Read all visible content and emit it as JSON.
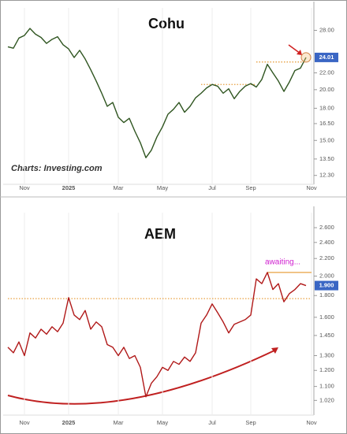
{
  "chart_data": [
    {
      "type": "line",
      "title": "Cohu",
      "source": "Charts: Investing.com",
      "log_scale": true,
      "color": "#2f5520",
      "categories": [
        null,
        null,
        null,
        "Nov",
        null,
        null,
        null,
        null,
        null,
        null,
        null,
        "2025",
        null,
        null,
        null,
        null,
        null,
        null,
        null,
        null,
        "Mar",
        null,
        null,
        null,
        null,
        null,
        null,
        null,
        "May",
        null,
        null,
        null,
        null,
        null,
        null,
        null,
        null,
        "Jul",
        null,
        null,
        null,
        null,
        null,
        null,
        "Sep",
        null,
        null,
        null,
        null,
        null,
        null,
        null,
        null,
        null,
        null,
        "Nov"
      ],
      "values": [
        25.5,
        25.3,
        26.8,
        27.2,
        28.3,
        27.4,
        26.9,
        26.0,
        26.6,
        27.0,
        25.8,
        25.2,
        24.0,
        25.0,
        23.8,
        22.4,
        21.0,
        19.6,
        18.2,
        18.6,
        17.1,
        16.6,
        17.0,
        15.8,
        14.8,
        13.6,
        14.2,
        15.3,
        16.2,
        17.4,
        17.9,
        18.6,
        17.6,
        18.2,
        19.1,
        19.6,
        20.2,
        20.6,
        20.4,
        19.6,
        20.1,
        19.0,
        19.8,
        20.4,
        20.7,
        20.3,
        21.2,
        23.1,
        22.0,
        21.0,
        19.8,
        20.9,
        22.3,
        22.6,
        24.01,
        null
      ],
      "value_labels": [
        null,
        null,
        null,
        null,
        null,
        null,
        null,
        null,
        null,
        null,
        null,
        null,
        null,
        null,
        null,
        null,
        null,
        null,
        null,
        null,
        null,
        null,
        null,
        null,
        null,
        null,
        null,
        null,
        null,
        null,
        null,
        null,
        null,
        null,
        null,
        null,
        null,
        null,
        null,
        null,
        null,
        null,
        null,
        null,
        null,
        null,
        null,
        null,
        null,
        null,
        null,
        null,
        null,
        null,
        "24.01",
        null
      ],
      "ylim": [
        11.8,
        31.8
      ],
      "yticks": [
        {
          "value": 12.3,
          "label": "12.30"
        },
        {
          "value": 13.5,
          "label": "13.50"
        },
        {
          "value": 15,
          "label": "15.00"
        },
        {
          "value": 16.5,
          "label": "16.50"
        },
        {
          "value": 18,
          "label": "18.00"
        },
        {
          "value": 20,
          "label": "20.00"
        },
        {
          "value": 22,
          "label": "22.00"
        },
        {
          "value": 28,
          "label": "28.00"
        }
      ],
      "hlines": [
        {
          "value": 20.6,
          "start": 35,
          "end": 45,
          "style": "dotted",
          "color": "#e8a040"
        },
        {
          "value": 23.4,
          "start": 45,
          "end": 54,
          "style": "dotted",
          "color": "#e8a040"
        }
      ]
    },
    {
      "type": "line",
      "title": "AEM",
      "annotation": "awaiting...",
      "log_scale": true,
      "color": "#b01818",
      "categories": [
        null,
        null,
        null,
        "Nov",
        null,
        null,
        null,
        null,
        null,
        null,
        null,
        "2025",
        null,
        null,
        null,
        null,
        null,
        null,
        null,
        null,
        "Mar",
        null,
        null,
        null,
        null,
        null,
        null,
        null,
        "May",
        null,
        null,
        null,
        null,
        null,
        null,
        null,
        null,
        "Jul",
        null,
        null,
        null,
        null,
        null,
        null,
        "Sep",
        null,
        null,
        null,
        null,
        null,
        null,
        null,
        null,
        null,
        null,
        "Nov"
      ],
      "values": [
        1.36,
        1.32,
        1.4,
        1.3,
        1.47,
        1.43,
        1.5,
        1.46,
        1.52,
        1.48,
        1.55,
        1.78,
        1.62,
        1.58,
        1.66,
        1.5,
        1.56,
        1.52,
        1.38,
        1.36,
        1.3,
        1.36,
        1.28,
        1.3,
        1.22,
        1.04,
        1.12,
        1.16,
        1.22,
        1.2,
        1.26,
        1.24,
        1.29,
        1.26,
        1.32,
        1.55,
        1.62,
        1.72,
        1.64,
        1.56,
        1.47,
        1.54,
        1.56,
        1.58,
        1.62,
        1.97,
        1.92,
        2.04,
        1.86,
        1.92,
        1.74,
        1.82,
        1.86,
        1.92,
        1.9,
        null
      ],
      "value_labels": [
        null,
        null,
        null,
        null,
        null,
        null,
        null,
        null,
        null,
        null,
        null,
        null,
        null,
        null,
        null,
        null,
        null,
        null,
        null,
        null,
        null,
        null,
        null,
        null,
        null,
        null,
        null,
        null,
        null,
        null,
        null,
        null,
        null,
        null,
        null,
        null,
        null,
        null,
        null,
        null,
        null,
        null,
        null,
        null,
        null,
        null,
        null,
        null,
        null,
        null,
        null,
        null,
        null,
        null,
        "1.900",
        null
      ],
      "ylim": [
        0.95,
        2.82
      ],
      "yticks": [
        {
          "value": 1.02,
          "label": "1.020"
        },
        {
          "value": 1.1,
          "label": "1.100"
        },
        {
          "value": 1.2,
          "label": "1.200"
        },
        {
          "value": 1.3,
          "label": "1.300"
        },
        {
          "value": 1.45,
          "label": "1.450"
        },
        {
          "value": 1.6,
          "label": "1.600"
        },
        {
          "value": 1.8,
          "label": "1.800"
        },
        {
          "value": 2,
          "label": "2.000"
        },
        {
          "value": 2.2,
          "label": "2.200"
        },
        {
          "value": 2.4,
          "label": "2.400"
        },
        {
          "value": 2.6,
          "label": "2.600"
        }
      ],
      "hlines": [
        {
          "value": 1.77,
          "start": 0,
          "end": 55,
          "style": "dotted",
          "color": "#e8a040"
        },
        {
          "value": 2.04,
          "start": 47,
          "end": 55,
          "style": "solid",
          "color": "#e8a040"
        }
      ]
    }
  ]
}
